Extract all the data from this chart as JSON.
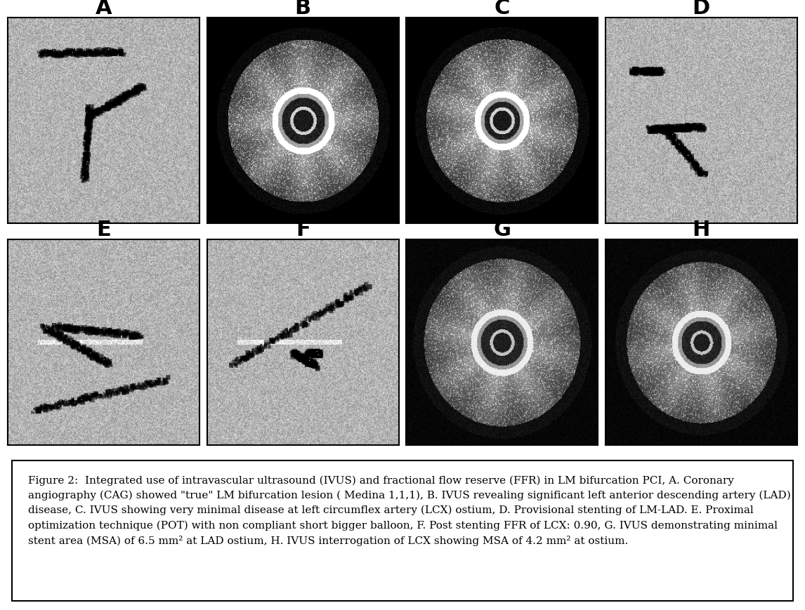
{
  "labels": [
    "A",
    "B",
    "C",
    "D",
    "E",
    "F",
    "G",
    "H"
  ],
  "grid_rows": 2,
  "grid_cols": 4,
  "label_fontsize": 22,
  "label_fontweight": "bold",
  "background_color": "#ffffff",
  "border_color": "#000000",
  "panel_types": [
    "angio",
    "ivus",
    "ivus",
    "angio",
    "angio",
    "angio",
    "ivus",
    "ivus"
  ],
  "caption_bold": "Figure 2:",
  "caption_text": " Integrated use of intravascular ultrasound (IVUS) and fractional flow reserve (FFR) in LM bifurcation PCI, A. Coronary angiography (CAG) showed \"true\" LM bifurcation lesion ( Medina 1,1,1), B. IVUS revealing significant left anterior descending artery (LAD) disease, C. IVUS showing very minimal disease at left circumflex artery (LCX) ostium, D. Provisional stenting of LM-LAD. E. Proximal optimization technique (POT) with non compliant short bigger balloon, F. Post stenting FFR of LCX: 0.90, G. IVUS demonstrating minimal stent area (MSA) of 6.5 mm² at LAD ostium, H. IVUS interrogation of LCX showing MSA of 4.2 mm² at ostium.",
  "caption_fontsize": 11,
  "fig_width": 11.46,
  "fig_height": 8.7
}
